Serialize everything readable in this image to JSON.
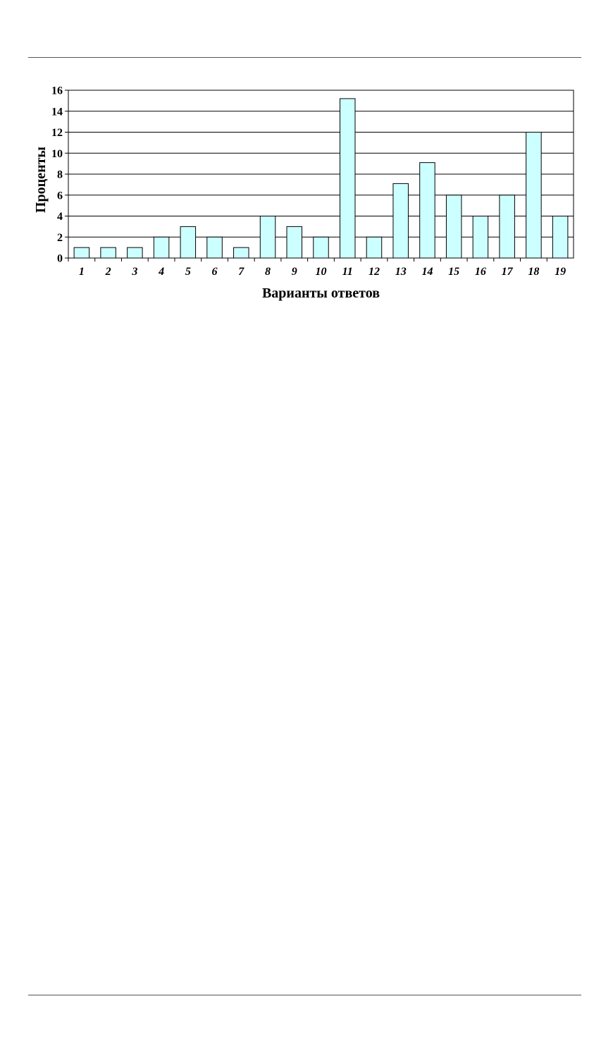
{
  "page": {
    "has_top_rule": true,
    "has_bottom_rule": true
  },
  "colors": {
    "bar_fill": "#ccffff",
    "bar_stroke": "#000000",
    "grid": "#000000"
  },
  "chart_data": {
    "type": "bar",
    "categories": [
      "1",
      "2",
      "3",
      "4",
      "5",
      "6",
      "7",
      "8",
      "9",
      "10",
      "11",
      "12",
      "13",
      "14",
      "15",
      "16",
      "17",
      "18",
      "19"
    ],
    "values": [
      1,
      1,
      1,
      2,
      3,
      2,
      1,
      4,
      3,
      2,
      15.2,
      2,
      7.1,
      9.1,
      6,
      4,
      6,
      12,
      4
    ],
    "title": "",
    "xlabel": "Варианты ответов",
    "ylabel": "Проценты",
    "ylim": [
      0,
      16
    ],
    "yticks": [
      0,
      2,
      4,
      6,
      8,
      10,
      12,
      14,
      16
    ],
    "grid": true,
    "legend": "none"
  }
}
